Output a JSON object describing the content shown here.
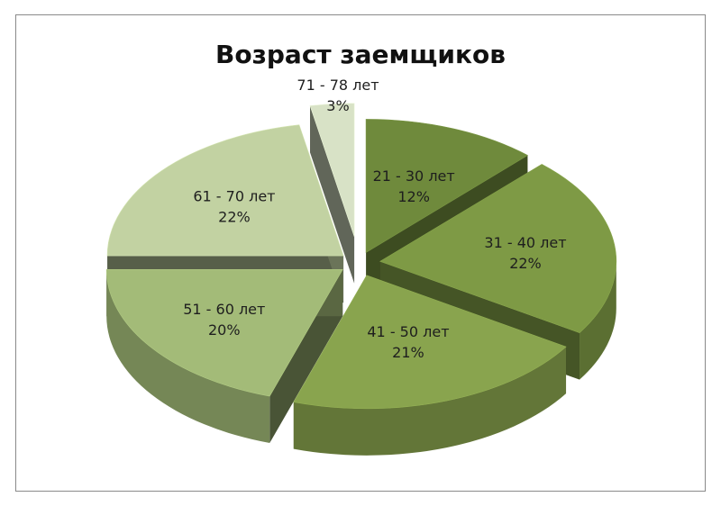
{
  "chart_data": {
    "type": "pie",
    "title": "Возраст заемщиков",
    "style": "3d-exploded",
    "slices": [
      {
        "label": "21 - 30 лет",
        "value": 12,
        "value_label": "12%",
        "color": "#6f8a3c"
      },
      {
        "label": "31 - 40 лет",
        "value": 22,
        "value_label": "22%",
        "color": "#7e9a45"
      },
      {
        "label": "41 - 50  лет",
        "value": 21,
        "value_label": "21%",
        "color": "#89a44e"
      },
      {
        "label": "51 - 60 лет",
        "value": 20,
        "value_label": "20%",
        "color": "#a3bb78"
      },
      {
        "label": "61 - 70 лет",
        "value": 22,
        "value_label": "22%",
        "color": "#c2d2a2"
      },
      {
        "label": "71 - 78 лет",
        "value": 3,
        "value_label": "3%",
        "color": "#d8e2c6"
      }
    ]
  }
}
